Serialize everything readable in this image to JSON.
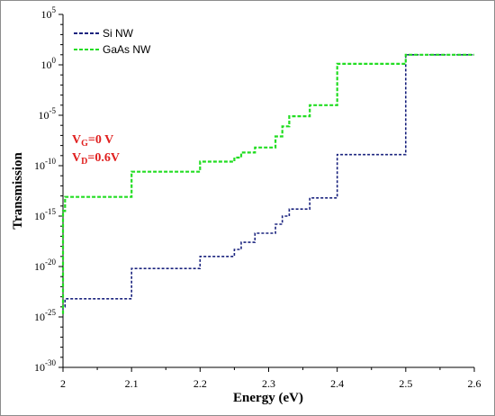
{
  "chart_data": {
    "type": "line",
    "xlabel": "Energy (eV)",
    "ylabel": "Transmission",
    "xlim": [
      2,
      2.6
    ],
    "ylim_log10": [
      -30,
      5
    ],
    "y_scale": "log",
    "grid": false,
    "legend_position": "top-left",
    "x_ticks": [
      "2",
      "2.1",
      "2.2",
      "2.3",
      "2.4",
      "2.5",
      "2.6"
    ],
    "y_tick_base": "10",
    "y_tick_exponents": [
      "5",
      "0",
      "-5",
      "-10",
      "-15",
      "-20",
      "-25",
      "-30"
    ],
    "annotation": {
      "vg_base": "V",
      "vg_sub": "G",
      "vg_rest": "=0 V",
      "vd_base": "V",
      "vd_sub": "D",
      "vd_rest": "=0.6V",
      "color": "#e0201f"
    },
    "series": [
      {
        "name": "Si NW",
        "color": "#1a237e",
        "style": "dashed-step",
        "x": [
          2,
          2.003,
          2.1,
          2.2,
          2.25,
          2.26,
          2.28,
          2.31,
          2.32,
          2.33,
          2.36,
          2.4,
          2.5,
          2.6
        ],
        "log10_y": [
          -24,
          -23.2,
          -20.2,
          -19,
          -18.3,
          -17.6,
          -16.7,
          -15.8,
          -15,
          -14.3,
          -13.2,
          -8.9,
          1,
          1
        ]
      },
      {
        "name": "GaAs NW",
        "color": "#22dd22",
        "style": "dashed-step",
        "x": [
          2,
          2.003,
          2.1,
          2.2,
          2.25,
          2.26,
          2.28,
          2.31,
          2.32,
          2.33,
          2.36,
          2.4,
          2.5,
          2.6
        ],
        "log10_y": [
          -14.5,
          -13.1,
          -10.6,
          -9.6,
          -9.2,
          -8.7,
          -8.2,
          -7.1,
          -6.1,
          -5.1,
          -4,
          0.1,
          1,
          1
        ]
      }
    ]
  }
}
